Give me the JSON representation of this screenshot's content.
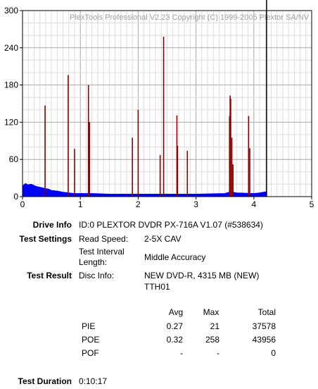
{
  "chart_data": {
    "type": "bar",
    "watermark": "PlexTools Professional V2.23 Copyright (C) 1999-2005 Plextor SA/NV",
    "xlim": [
      0,
      5
    ],
    "ylim": [
      0,
      300
    ],
    "x_ticks": [
      "0",
      "1",
      "2",
      "3",
      "4",
      "5"
    ],
    "y_ticks": [
      "0",
      "60",
      "120",
      "180",
      "240",
      "300"
    ],
    "grid": true,
    "end_marker_x": 4.22,
    "series": [
      {
        "color": "#8b0000",
        "type": "spikes",
        "points": [
          {
            "x": 0.39,
            "y": 147
          },
          {
            "x": 0.79,
            "y": 196
          },
          {
            "x": 0.9,
            "y": 77
          },
          {
            "x": 1.14,
            "y": 180
          },
          {
            "x": 1.16,
            "y": 120
          },
          {
            "x": 1.9,
            "y": 95
          },
          {
            "x": 2.0,
            "y": 140
          },
          {
            "x": 2.38,
            "y": 67
          },
          {
            "x": 2.44,
            "y": 258
          },
          {
            "x": 2.67,
            "y": 131
          },
          {
            "x": 2.68,
            "y": 82
          },
          {
            "x": 2.85,
            "y": 74
          },
          {
            "x": 3.58,
            "y": 130
          },
          {
            "x": 3.59,
            "y": 163
          },
          {
            "x": 3.6,
            "y": 158
          },
          {
            "x": 3.62,
            "y": 95
          },
          {
            "x": 3.64,
            "y": 52
          },
          {
            "x": 3.91,
            "y": 130
          },
          {
            "x": 3.93,
            "y": 78
          }
        ]
      },
      {
        "color": "#0000ff",
        "type": "area",
        "points": [
          {
            "x": 0.0,
            "y": 17
          },
          {
            "x": 0.05,
            "y": 21
          },
          {
            "x": 0.1,
            "y": 19
          },
          {
            "x": 0.15,
            "y": 20
          },
          {
            "x": 0.2,
            "y": 18
          },
          {
            "x": 0.25,
            "y": 16
          },
          {
            "x": 0.3,
            "y": 15
          },
          {
            "x": 0.35,
            "y": 14
          },
          {
            "x": 0.4,
            "y": 13
          },
          {
            "x": 0.45,
            "y": 12
          },
          {
            "x": 0.5,
            "y": 10
          },
          {
            "x": 0.6,
            "y": 9
          },
          {
            "x": 0.7,
            "y": 7
          },
          {
            "x": 0.8,
            "y": 6
          },
          {
            "x": 0.9,
            "y": 5
          },
          {
            "x": 1.0,
            "y": 5
          },
          {
            "x": 1.2,
            "y": 5
          },
          {
            "x": 1.5,
            "y": 4
          },
          {
            "x": 2.0,
            "y": 4
          },
          {
            "x": 2.5,
            "y": 4
          },
          {
            "x": 3.0,
            "y": 4
          },
          {
            "x": 3.5,
            "y": 5
          },
          {
            "x": 3.6,
            "y": 8
          },
          {
            "x": 3.7,
            "y": 6
          },
          {
            "x": 4.0,
            "y": 5
          },
          {
            "x": 4.1,
            "y": 6
          },
          {
            "x": 4.22,
            "y": 8
          }
        ]
      }
    ]
  },
  "info": {
    "drive_info_label": "Drive Info",
    "drive_info_value": "ID:0 PLEXTOR DVDR PX-716A V1.07 (#538634)",
    "test_settings_label": "Test Settings",
    "read_speed_label": "Read Speed:",
    "read_speed_value": "2-5X CAV",
    "interval_label_1": "Test Interval",
    "interval_label_2": "Length:",
    "interval_value": "Middle Accuracy",
    "test_result_label": "Test Result",
    "disc_info_label": "Disc Info:",
    "disc_info_value_1": "NEW DVD-R, 4315 MB (NEW)",
    "disc_info_value_2": "TTH01",
    "test_duration_label": "Test Duration",
    "test_duration_value": "0:10:17"
  },
  "results": {
    "headers": {
      "avg": "Avg",
      "max": "Max",
      "total": "Total"
    },
    "rows": [
      {
        "name": "PIE",
        "avg": "0.27",
        "max": "21",
        "total": "37578"
      },
      {
        "name": "POE",
        "avg": "0.32",
        "max": "258",
        "total": "43956"
      },
      {
        "name": "POF",
        "avg": "-",
        "max": "-",
        "total": "0"
      }
    ]
  }
}
